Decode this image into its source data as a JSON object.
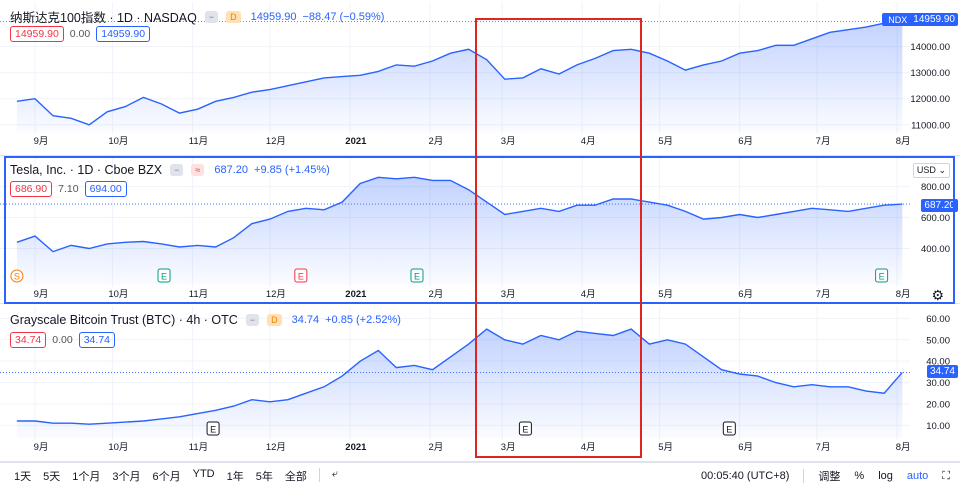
{
  "panes": [
    {
      "id": "ndx",
      "title": "纳斯达克100指数 · 1D · NASDAQ",
      "badge": "D",
      "last": "14959.90",
      "change": "−88.47 (−0.59%)",
      "box1": "14959.90",
      "mid": "0.00",
      "box2": "14959.90",
      "symbol_tag": "NDX",
      "price_tag": "14959.90",
      "y_ticks": [
        "14000.00",
        "13000.00",
        "12000.00",
        "11000.00"
      ],
      "x_ticks": [
        "9月",
        "10月",
        "11月",
        "12月",
        "2021",
        "2月",
        "3月",
        "4月",
        "5月",
        "6月",
        "7月",
        "8月"
      ]
    },
    {
      "id": "tsla",
      "title": "Tesla, Inc. · 1D · Cboe BZX",
      "badge": "≈",
      "last": "687.20",
      "change": "+9.85 (+1.45%)",
      "box1": "686.90",
      "mid": "7.10",
      "box2": "694.00",
      "currency": "USD",
      "price_tag": "687.20",
      "y_ticks": [
        "800.00",
        "600.00",
        "400.00"
      ],
      "x_ticks": [
        "9月",
        "10月",
        "11月",
        "12月",
        "2021",
        "2月",
        "3月",
        "4月",
        "5月",
        "6月",
        "7月",
        "8月"
      ],
      "events": [
        "S",
        "E",
        "E",
        "E",
        "E"
      ]
    },
    {
      "id": "gbtc",
      "title": "Grayscale Bitcoin Trust (BTC) · 4h · OTC",
      "badge": "D",
      "last": "34.74",
      "change": "+0.85 (+2.52%)",
      "box1": "34.74",
      "mid": "0.00",
      "box2": "34.74",
      "price_tag": "34.74",
      "y_ticks": [
        "60.00",
        "50.00",
        "40.00",
        "30.00",
        "20.00",
        "10.00"
      ],
      "x_ticks": [
        "9月",
        "10月",
        "11月",
        "12月",
        "2021",
        "2月",
        "3月",
        "4月",
        "5月",
        "6月",
        "7月",
        "8月"
      ],
      "events": [
        "E",
        "E",
        "E"
      ]
    }
  ],
  "bottom_bar": {
    "ranges": [
      "1天",
      "5天",
      "1个月",
      "3个月",
      "6个月",
      "YTD",
      "1年",
      "5年",
      "全部"
    ],
    "time": "00:05:40 (UTC+8)",
    "adjust": "调整",
    "percent": "%",
    "log": "log",
    "auto": "auto"
  },
  "chart_data": [
    {
      "type": "area",
      "title": "纳斯达克100指数 · 1D · NASDAQ",
      "x": [
        "2020-08-25",
        "2020-09-01",
        "2020-09-08",
        "2020-09-15",
        "2020-09-22",
        "2020-09-29",
        "2020-10-06",
        "2020-10-13",
        "2020-10-20",
        "2020-10-27",
        "2020-11-03",
        "2020-11-10",
        "2020-11-17",
        "2020-11-24",
        "2020-12-01",
        "2020-12-08",
        "2020-12-15",
        "2020-12-22",
        "2020-12-29",
        "2021-01-05",
        "2021-01-12",
        "2021-01-19",
        "2021-01-26",
        "2021-02-02",
        "2021-02-09",
        "2021-02-16",
        "2021-02-23",
        "2021-03-02",
        "2021-03-09",
        "2021-03-16",
        "2021-03-23",
        "2021-03-30",
        "2021-04-06",
        "2021-04-13",
        "2021-04-20",
        "2021-04-27",
        "2021-05-04",
        "2021-05-11",
        "2021-05-18",
        "2021-05-25",
        "2021-06-01",
        "2021-06-08",
        "2021-06-15",
        "2021-06-22",
        "2021-06-29",
        "2021-07-06",
        "2021-07-13",
        "2021-07-20",
        "2021-07-27",
        "2021-08-03"
      ],
      "values": [
        11900,
        12000,
        11350,
        11250,
        11000,
        11500,
        11700,
        12050,
        11800,
        11450,
        11600,
        11900,
        12050,
        12250,
        12350,
        12500,
        12650,
        12800,
        12850,
        12900,
        13050,
        13300,
        13250,
        13450,
        13750,
        13900,
        13500,
        12750,
        12800,
        13150,
        12950,
        13300,
        13550,
        13850,
        13900,
        13750,
        13450,
        13100,
        13300,
        13450,
        13750,
        13850,
        14050,
        14050,
        14300,
        14550,
        14650,
        14750,
        14900,
        14960
      ],
      "ylim": [
        10800,
        15100
      ],
      "y_ticks": [
        11000,
        12000,
        13000,
        14000
      ],
      "last": 14959.9
    },
    {
      "type": "area",
      "title": "Tesla, Inc. · 1D · Cboe BZX",
      "x": [
        "2020-08-25",
        "2020-09-01",
        "2020-09-08",
        "2020-09-15",
        "2020-09-22",
        "2020-09-29",
        "2020-10-06",
        "2020-10-13",
        "2020-10-20",
        "2020-10-27",
        "2020-11-03",
        "2020-11-10",
        "2020-11-17",
        "2020-11-24",
        "2020-12-01",
        "2020-12-08",
        "2020-12-15",
        "2020-12-22",
        "2020-12-29",
        "2021-01-05",
        "2021-01-12",
        "2021-01-19",
        "2021-01-26",
        "2021-02-02",
        "2021-02-09",
        "2021-02-16",
        "2021-02-23",
        "2021-03-02",
        "2021-03-09",
        "2021-03-16",
        "2021-03-23",
        "2021-03-30",
        "2021-04-06",
        "2021-04-13",
        "2021-04-20",
        "2021-04-27",
        "2021-05-04",
        "2021-05-11",
        "2021-05-18",
        "2021-05-25",
        "2021-06-01",
        "2021-06-08",
        "2021-06-15",
        "2021-06-22",
        "2021-06-29",
        "2021-07-06",
        "2021-07-13",
        "2021-07-20",
        "2021-07-27",
        "2021-08-03"
      ],
      "values": [
        440,
        480,
        380,
        420,
        400,
        430,
        440,
        445,
        430,
        410,
        420,
        410,
        470,
        560,
        590,
        640,
        660,
        650,
        700,
        820,
        860,
        850,
        860,
        840,
        840,
        780,
        700,
        620,
        640,
        660,
        640,
        680,
        680,
        720,
        720,
        700,
        680,
        640,
        590,
        600,
        620,
        600,
        620,
        640,
        660,
        650,
        640,
        660,
        680,
        687
      ],
      "ylim": [
        300,
        920
      ],
      "y_ticks": [
        400,
        600,
        800
      ],
      "last": 687.2
    },
    {
      "type": "area",
      "title": "Grayscale Bitcoin Trust (BTC) · 4h · OTC",
      "x": [
        "2020-08-25",
        "2020-09-01",
        "2020-09-08",
        "2020-09-15",
        "2020-09-22",
        "2020-09-29",
        "2020-10-06",
        "2020-10-13",
        "2020-10-20",
        "2020-10-27",
        "2020-11-03",
        "2020-11-10",
        "2020-11-17",
        "2020-11-24",
        "2020-12-01",
        "2020-12-08",
        "2020-12-15",
        "2020-12-22",
        "2020-12-29",
        "2021-01-05",
        "2021-01-12",
        "2021-01-19",
        "2021-01-26",
        "2021-02-02",
        "2021-02-09",
        "2021-02-16",
        "2021-02-23",
        "2021-03-02",
        "2021-03-09",
        "2021-03-16",
        "2021-03-23",
        "2021-03-30",
        "2021-04-06",
        "2021-04-13",
        "2021-04-20",
        "2021-04-27",
        "2021-05-04",
        "2021-05-11",
        "2021-05-18",
        "2021-05-25",
        "2021-06-01",
        "2021-06-08",
        "2021-06-15",
        "2021-06-22",
        "2021-06-29",
        "2021-07-06",
        "2021-07-13",
        "2021-07-20",
        "2021-07-27",
        "2021-08-03"
      ],
      "values": [
        12,
        12,
        11,
        11,
        10.5,
        11,
        11.5,
        12,
        13,
        14,
        15.5,
        17,
        19,
        22,
        21,
        22,
        25,
        28,
        33,
        40,
        45,
        37,
        38,
        36,
        42,
        48,
        55,
        50,
        48,
        52,
        50,
        54,
        53,
        52,
        55,
        48,
        50,
        48,
        42,
        36,
        34,
        33,
        30,
        28,
        29,
        28,
        28,
        26,
        25,
        34.74
      ],
      "ylim": [
        5,
        63
      ],
      "y_ticks": [
        10,
        20,
        30,
        40,
        50,
        60
      ],
      "last": 34.74
    }
  ]
}
